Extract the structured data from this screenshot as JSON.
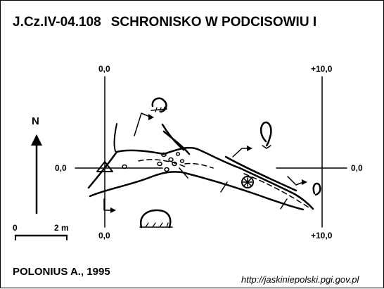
{
  "header": {
    "code": "J.Cz.IV-04.108",
    "name": "SCHRONISKO W PODCISOWIU I"
  },
  "grid_labels": {
    "left_top": "0,0",
    "left_bottom": "0,0",
    "right_top": "+10,0",
    "right_bottom": "+10,0",
    "left_mid": "0,0",
    "right_mid": "0,0"
  },
  "north_arrow": {
    "label": "N"
  },
  "scale_bar": {
    "start": "0",
    "end": "2 m"
  },
  "footer": {
    "author": "POLONIUS A., 1995",
    "source_url": "http://jaskiniepolski.pgi.gov.pl"
  }
}
